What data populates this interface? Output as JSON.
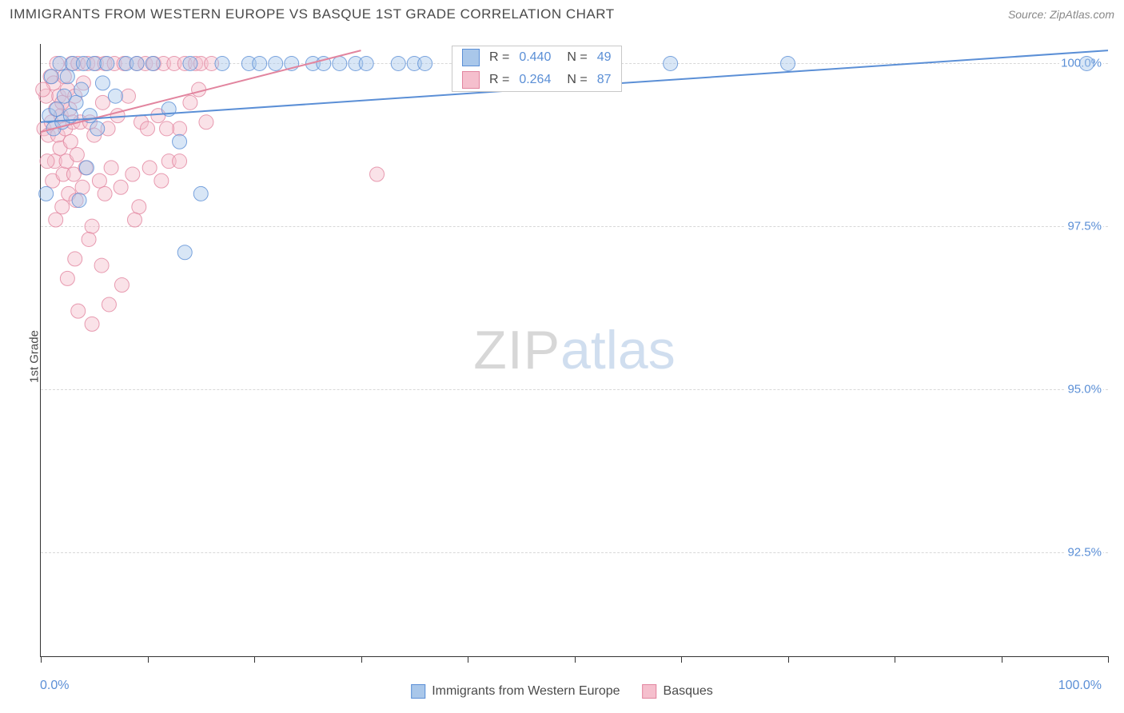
{
  "title": "IMMIGRANTS FROM WESTERN EUROPE VS BASQUE 1ST GRADE CORRELATION CHART",
  "source": "Source: ZipAtlas.com",
  "watermark_a": "ZIP",
  "watermark_b": "atlas",
  "ylabel": "1st Grade",
  "xaxis": {
    "min_label": "0.0%",
    "max_label": "100.0%"
  },
  "legend": {
    "series1": "Immigrants from Western Europe",
    "series2": "Basques"
  },
  "colors": {
    "blue_fill": "#a9c7ea",
    "blue_stroke": "#5b8fd6",
    "pink_fill": "#f5bfcd",
    "pink_stroke": "#e2859f",
    "grid": "#d8d8d8",
    "axis": "#333333",
    "tick_text": "#5b8fd6",
    "text": "#4a4a4a",
    "bg": "#ffffff"
  },
  "stats": {
    "s1": {
      "r_label": "R =",
      "r_value": "0.440",
      "n_label": "N =",
      "n_value": "49"
    },
    "s2": {
      "r_label": "R =",
      "r_value": "0.264",
      "n_label": "N =",
      "n_value": "87"
    }
  },
  "chart": {
    "type": "scatter",
    "xlim": [
      0,
      100
    ],
    "ylim": [
      90.9,
      100.3
    ],
    "yticks": [
      92.5,
      95.0,
      97.5,
      100.0
    ],
    "ytick_labels": [
      "92.5%",
      "95.0%",
      "97.5%",
      "100.0%"
    ],
    "xticks": [
      0,
      10,
      20,
      30,
      40,
      50,
      60,
      70,
      80,
      90,
      100
    ],
    "marker_radius": 9,
    "marker_opacity": 0.45,
    "line_width": 2,
    "blue_line": {
      "x1": 0,
      "y1": 99.1,
      "x2": 100,
      "y2": 100.2
    },
    "pink_line": {
      "x1": 0,
      "y1": 98.95,
      "x2": 30,
      "y2": 100.2
    },
    "blue_points": [
      [
        0.5,
        98.0
      ],
      [
        0.8,
        99.2
      ],
      [
        1.0,
        99.8
      ],
      [
        1.2,
        99.0
      ],
      [
        1.5,
        99.3
      ],
      [
        1.8,
        100.0
      ],
      [
        2.0,
        99.1
      ],
      [
        2.2,
        99.5
      ],
      [
        2.5,
        99.8
      ],
      [
        2.8,
        99.2
      ],
      [
        3.0,
        100.0
      ],
      [
        3.3,
        99.4
      ],
      [
        3.6,
        97.9
      ],
      [
        3.8,
        99.6
      ],
      [
        4.0,
        100.0
      ],
      [
        4.3,
        98.4
      ],
      [
        4.6,
        99.2
      ],
      [
        5.0,
        100.0
      ],
      [
        5.3,
        99.0
      ],
      [
        5.8,
        99.7
      ],
      [
        6.2,
        100.0
      ],
      [
        7.0,
        99.5
      ],
      [
        8.0,
        100.0
      ],
      [
        9.0,
        100.0
      ],
      [
        10.5,
        100.0
      ],
      [
        12.0,
        99.3
      ],
      [
        13.0,
        98.8
      ],
      [
        13.5,
        97.1
      ],
      [
        14.0,
        100.0
      ],
      [
        15.0,
        98.0
      ],
      [
        17.0,
        100.0
      ],
      [
        19.5,
        100.0
      ],
      [
        20.5,
        100.0
      ],
      [
        22.0,
        100.0
      ],
      [
        23.5,
        100.0
      ],
      [
        25.5,
        100.0
      ],
      [
        26.5,
        100.0
      ],
      [
        28.0,
        100.0
      ],
      [
        29.5,
        100.0
      ],
      [
        30.5,
        100.0
      ],
      [
        33.5,
        100.0
      ],
      [
        35.0,
        100.0
      ],
      [
        36.0,
        100.0
      ],
      [
        40.0,
        100.0
      ],
      [
        44.0,
        100.0
      ],
      [
        45.5,
        100.0
      ],
      [
        59.0,
        100.0
      ],
      [
        70.0,
        100.0
      ],
      [
        98.0,
        100.0
      ]
    ],
    "pink_points": [
      [
        0.3,
        99.0
      ],
      [
        0.5,
        99.5
      ],
      [
        0.7,
        98.9
      ],
      [
        0.9,
        99.8
      ],
      [
        1.0,
        99.1
      ],
      [
        1.1,
        98.2
      ],
      [
        1.2,
        99.7
      ],
      [
        1.3,
        98.5
      ],
      [
        1.4,
        99.3
      ],
      [
        1.5,
        100.0
      ],
      [
        1.6,
        98.9
      ],
      [
        1.7,
        99.5
      ],
      [
        1.8,
        98.7
      ],
      [
        1.9,
        99.2
      ],
      [
        2.0,
        97.8
      ],
      [
        2.1,
        98.3
      ],
      [
        2.2,
        99.8
      ],
      [
        2.3,
        99.0
      ],
      [
        2.4,
        98.5
      ],
      [
        2.5,
        99.6
      ],
      [
        2.6,
        98.0
      ],
      [
        2.7,
        99.3
      ],
      [
        2.8,
        98.8
      ],
      [
        2.9,
        100.0
      ],
      [
        3.0,
        99.1
      ],
      [
        3.1,
        98.3
      ],
      [
        3.2,
        99.5
      ],
      [
        3.3,
        97.9
      ],
      [
        3.4,
        98.6
      ],
      [
        3.5,
        100.0
      ],
      [
        3.7,
        99.1
      ],
      [
        3.9,
        98.1
      ],
      [
        4.0,
        99.7
      ],
      [
        4.2,
        98.4
      ],
      [
        4.4,
        100.0
      ],
      [
        4.6,
        99.1
      ],
      [
        4.8,
        97.5
      ],
      [
        5.0,
        98.9
      ],
      [
        5.2,
        100.0
      ],
      [
        5.5,
        98.2
      ],
      [
        5.8,
        99.4
      ],
      [
        6.0,
        100.0
      ],
      [
        6.3,
        99.0
      ],
      [
        6.6,
        98.4
      ],
      [
        6.9,
        100.0
      ],
      [
        7.2,
        99.2
      ],
      [
        7.5,
        98.1
      ],
      [
        7.8,
        100.0
      ],
      [
        8.2,
        99.5
      ],
      [
        8.6,
        98.3
      ],
      [
        9.0,
        100.0
      ],
      [
        9.4,
        99.1
      ],
      [
        9.8,
        100.0
      ],
      [
        10.2,
        98.4
      ],
      [
        10.6,
        100.0
      ],
      [
        11.0,
        99.2
      ],
      [
        11.5,
        100.0
      ],
      [
        12.0,
        98.5
      ],
      [
        12.5,
        100.0
      ],
      [
        13.0,
        99.0
      ],
      [
        4.5,
        97.3
      ],
      [
        5.7,
        96.9
      ],
      [
        6.4,
        96.3
      ],
      [
        7.6,
        96.6
      ],
      [
        2.5,
        96.7
      ],
      [
        3.2,
        97.0
      ],
      [
        9.2,
        97.8
      ],
      [
        11.3,
        98.2
      ],
      [
        13.5,
        100.0
      ],
      [
        14.0,
        99.4
      ],
      [
        14.5,
        100.0
      ],
      [
        15.0,
        100.0
      ],
      [
        15.5,
        99.1
      ],
      [
        16.0,
        100.0
      ],
      [
        11.8,
        99.0
      ],
      [
        3.5,
        96.2
      ],
      [
        4.8,
        96.0
      ],
      [
        6.0,
        98.0
      ],
      [
        13.0,
        98.5
      ],
      [
        8.8,
        97.6
      ],
      [
        10.0,
        99.0
      ],
      [
        14.8,
        99.6
      ],
      [
        31.5,
        98.3
      ],
      [
        2.0,
        99.4
      ],
      [
        1.4,
        97.6
      ],
      [
        0.6,
        98.5
      ],
      [
        0.2,
        99.6
      ]
    ]
  }
}
